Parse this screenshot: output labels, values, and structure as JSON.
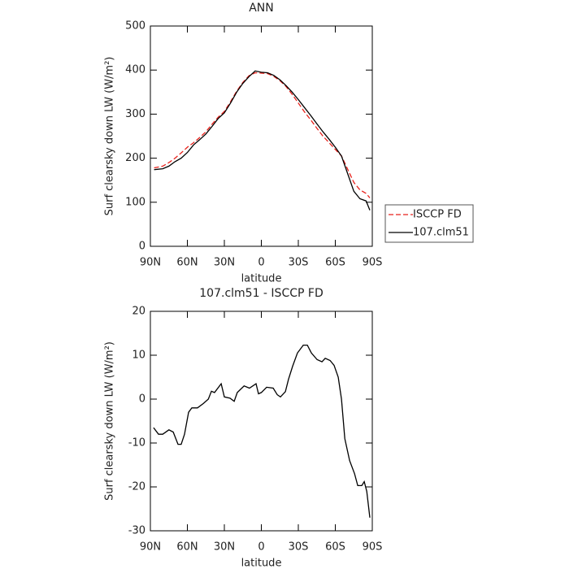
{
  "chart_data": [
    {
      "type": "line",
      "title": "ANN",
      "xlabel": "latitude",
      "ylabel": "Surf clearsky down LW (W/m²)",
      "xlim": [
        90,
        -90
      ],
      "ylim": [
        0,
        500
      ],
      "xticks": [
        {
          "value": 90,
          "label": "90N"
        },
        {
          "value": 60,
          "label": "60N"
        },
        {
          "value": 30,
          "label": "30N"
        },
        0,
        {
          "value": -30,
          "label": "30S"
        },
        {
          "value": -60,
          "label": "60S"
        },
        {
          "value": -90,
          "label": "90S"
        }
      ],
      "yticks": [
        0,
        100,
        200,
        300,
        400,
        500
      ],
      "legend": "right",
      "x": [
        87,
        80,
        75,
        70,
        65,
        60,
        55,
        50,
        45,
        40,
        35,
        30,
        25,
        20,
        15,
        10,
        5,
        0,
        -5,
        -10,
        -15,
        -20,
        -25,
        -30,
        -35,
        -40,
        -45,
        -50,
        -55,
        -60,
        -65,
        -70,
        -75,
        -80,
        -85,
        -88
      ],
      "series": [
        {
          "name": "ISCCP FD",
          "color": "#e8201a",
          "linestyle": "dashed",
          "values": [
            178,
            182,
            190,
            200,
            212,
            225,
            235,
            247,
            260,
            277,
            293,
            306,
            328,
            352,
            372,
            387,
            394,
            393,
            392,
            386,
            376,
            363,
            345,
            325,
            305,
            287,
            268,
            250,
            235,
            220,
            205,
            175,
            145,
            128,
            120,
            110
          ]
        },
        {
          "name": "107.clm51",
          "color": "#000000",
          "linestyle": "solid",
          "values": [
            174,
            176,
            182,
            192,
            200,
            213,
            230,
            242,
            255,
            272,
            290,
            303,
            325,
            350,
            370,
            385,
            398,
            395,
            394,
            388,
            378,
            365,
            350,
            333,
            315,
            297,
            278,
            260,
            243,
            225,
            205,
            165,
            125,
            108,
            103,
            82
          ]
        }
      ]
    },
    {
      "type": "line",
      "title": "107.clm51 - ISCCP FD",
      "xlabel": "latitude",
      "ylabel": "Surf clearsky down LW (W/m²)",
      "xlim": [
        90,
        -90
      ],
      "ylim": [
        -30,
        20
      ],
      "xticks": [
        {
          "value": 90,
          "label": "90N"
        },
        {
          "value": 60,
          "label": "60N"
        },
        {
          "value": 30,
          "label": "30N"
        },
        0,
        {
          "value": -30,
          "label": "30S"
        },
        {
          "value": -60,
          "label": "60S"
        },
        {
          "value": -90,
          "label": "90S"
        }
      ],
      "yticks": [
        -30,
        -20,
        -10,
        0,
        10,
        20
      ],
      "x": [
        87.4,
        83.4,
        80,
        75,
        71.5,
        67.6,
        65,
        62.3,
        59,
        56.4,
        51.8,
        47,
        43,
        40.5,
        38,
        32.6,
        30,
        25.4,
        22,
        19.5,
        14,
        9.6,
        4.3,
        2.3,
        0,
        -4.3,
        -9.6,
        -12.9,
        -15.5,
        -19.5,
        -22,
        -25.4,
        -29.3,
        -34,
        -37.3,
        -40.6,
        -45.2,
        -49.2,
        -51.8,
        -55.8,
        -59,
        -62.4,
        -65,
        -67.7,
        -71.6,
        -75.6,
        -78.2,
        -81.5,
        -83.5,
        -85.5,
        -88
      ],
      "series": [
        {
          "color": "#000000",
          "linestyle": "solid",
          "values": [
            -6.5,
            -8,
            -8,
            -7,
            -7.5,
            -10.3,
            -10.3,
            -8,
            -3,
            -2,
            -2,
            -1,
            0,
            1.8,
            1.5,
            3.5,
            0.5,
            0.2,
            -0.5,
            1.5,
            3,
            2.5,
            3.5,
            1.2,
            1.5,
            2.7,
            2.5,
            1,
            0.5,
            1.7,
            4.5,
            7.5,
            10.5,
            12.3,
            12.3,
            10.5,
            9,
            8.5,
            9.3,
            8.8,
            7.7,
            5,
            0,
            -9,
            -14,
            -17,
            -19.7,
            -19.7,
            -18.8,
            -21,
            -27
          ]
        }
      ]
    }
  ]
}
